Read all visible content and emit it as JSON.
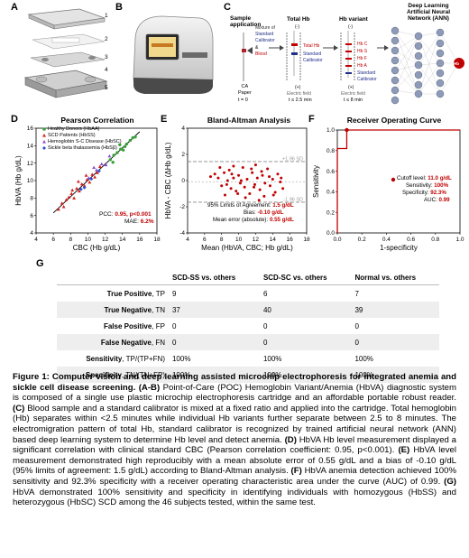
{
  "panels": {
    "a": "A",
    "b": "B",
    "c": "C",
    "d": "D",
    "e": "E",
    "f": "F",
    "g": "G"
  },
  "panel_a": {
    "parts": [
      "1",
      "2",
      "3",
      "4",
      "5"
    ]
  },
  "panel_c": {
    "sample_application": "Sample\napplication",
    "mixture": "Mixture of",
    "standard_calibrator": "Standard\nCalibrator",
    "amp": "&",
    "blood": "Blood",
    "ca_paper": "CA\nPaper",
    "t0": "t = 0",
    "total_hb_title": "Total Hb",
    "minus1": "(-)",
    "total_hb": "Total Hb",
    "standard_calibrator2": "Standard\nCalibrator",
    "plus1": "(+)",
    "electric_field1": "Electric field",
    "time1": "t ≤ 2.5 min",
    "variant_title": "Hb variant",
    "minus2": "(-)",
    "variants": [
      "Hb C",
      "Hb S",
      "Hb F",
      "Hb A",
      "Standard\nCalibrator"
    ],
    "plus2": "(+)",
    "electric_field2": "Electric field",
    "time2": "t ≤ 8 min",
    "ann_title": "Deep Learning\nArtificial Neural\nNetwork (ANN)",
    "hb_node": "Hb"
  },
  "chart_data": [
    {
      "type": "scatter",
      "title": "Pearson Correlation",
      "xlabel": "CBC (Hb g/dL)",
      "ylabel": "HbVA (Hb g/dL)",
      "xlim": [
        4,
        18
      ],
      "ylim": [
        4,
        16
      ],
      "xticks": [
        4,
        6,
        8,
        10,
        12,
        14,
        16,
        18
      ],
      "yticks": [
        4,
        6,
        8,
        10,
        12,
        14,
        16
      ],
      "legend": [
        "Healthy Donors (HbAA)",
        "SCD Patients (HbSS)",
        "Hemoglobin S-C Disease (HbSC)",
        "Sickle beta thalassemia (HbSβ)"
      ],
      "legend_colors": [
        "#3ca03c",
        "#d22020",
        "#8a4fd0",
        "#3050d0"
      ],
      "series": [
        {
          "name": "Healthy Donors (HbAA)",
          "points": [
            [
              12.6,
              12.4
            ],
            [
              13.0,
              12.9
            ],
            [
              13.4,
              13.2
            ],
            [
              13.8,
              13.6
            ],
            [
              14.1,
              13.5
            ],
            [
              14.5,
              14.2
            ],
            [
              14.9,
              14.6
            ],
            [
              15.2,
              14.9
            ],
            [
              13.7,
              14.1
            ],
            [
              12.9,
              12.1
            ],
            [
              15.5,
              15.0
            ],
            [
              14.3,
              13.9
            ]
          ]
        },
        {
          "name": "SCD Patients (HbSS)",
          "points": [
            [
              6.6,
              6.7
            ],
            [
              7.0,
              7.4
            ],
            [
              7.5,
              7.8
            ],
            [
              7.8,
              8.1
            ],
            [
              8.1,
              8.5
            ],
            [
              8.4,
              8.0
            ],
            [
              8.7,
              9.1
            ],
            [
              9.0,
              8.8
            ],
            [
              9.3,
              9.6
            ],
            [
              9.6,
              9.4
            ],
            [
              9.9,
              10.1
            ],
            [
              10.2,
              9.8
            ],
            [
              10.5,
              10.7
            ],
            [
              10.8,
              10.4
            ],
            [
              11.1,
              10.9
            ],
            [
              8.9,
              9.9
            ],
            [
              9.8,
              10.6
            ],
            [
              7.2,
              7.0
            ],
            [
              11.4,
              11.6
            ],
            [
              8.2,
              8.9
            ]
          ]
        },
        {
          "name": "Hemoglobin S-C Disease (HbSC)",
          "points": [
            [
              10.1,
              10.3
            ],
            [
              11.0,
              11.2
            ],
            [
              11.6,
              11.9
            ],
            [
              12.1,
              11.8
            ],
            [
              12.5,
              12.8
            ],
            [
              10.7,
              11.5
            ]
          ]
        },
        {
          "name": "Sickle beta thalassemia (HbSβ)",
          "points": [
            [
              9.2,
              9.0
            ],
            [
              10.4,
              10.2
            ],
            [
              11.3,
              11.1
            ],
            [
              9.6,
              9.2
            ]
          ]
        }
      ],
      "fit_line": [
        [
          6,
          6.3
        ],
        [
          16,
          15.6
        ]
      ],
      "stats": {
        "pcc_label": "PCC: ",
        "pcc": "0.95, p<0.001",
        "mae_label": "MAE: ",
        "mae": "6.2%"
      }
    },
    {
      "type": "scatter",
      "title": "Bland-Altman Analysis",
      "xlabel": "Mean (HbVA, CBC; Hb g/dL)",
      "ylabel": "HbVA - CBC (ΔHb g/dL)",
      "xlim": [
        4,
        18
      ],
      "ylim": [
        -4,
        4
      ],
      "xticks": [
        4,
        6,
        8,
        10,
        12,
        14,
        16,
        18
      ],
      "yticks": [
        -4,
        -2,
        0,
        2,
        4
      ],
      "limits": {
        "upper": 1.45,
        "lower": -1.65,
        "bias": -0.1
      },
      "upper_label": "+1.96 SD",
      "lower_label": "-1.96 SD",
      "points": [
        [
          6.7,
          0.3
        ],
        [
          7.2,
          0.5
        ],
        [
          7.6,
          0.2
        ],
        [
          8.0,
          -0.4
        ],
        [
          8.3,
          0.6
        ],
        [
          8.6,
          -0.3
        ],
        [
          8.9,
          0.8
        ],
        [
          9.1,
          -0.6
        ],
        [
          9.4,
          0.2
        ],
        [
          9.7,
          -0.8
        ],
        [
          10.0,
          0.4
        ],
        [
          10.2,
          -0.2
        ],
        [
          10.5,
          1.0
        ],
        [
          10.7,
          -0.5
        ],
        [
          11.0,
          0.1
        ],
        [
          11.3,
          -1.0
        ],
        [
          11.6,
          0.6
        ],
        [
          11.9,
          -0.3
        ],
        [
          12.2,
          0.2
        ],
        [
          12.5,
          -0.7
        ],
        [
          12.8,
          0.4
        ],
        [
          13.1,
          -0.2
        ],
        [
          13.4,
          0.9
        ],
        [
          13.7,
          -0.4
        ],
        [
          14.0,
          0.1
        ],
        [
          14.3,
          -0.9
        ],
        [
          14.6,
          0.5
        ],
        [
          14.9,
          -0.1
        ],
        [
          15.2,
          -0.6
        ],
        [
          9.4,
          1.1
        ],
        [
          10.8,
          -1.3
        ],
        [
          12.0,
          1.2
        ],
        [
          8.4,
          -1.1
        ],
        [
          13.0,
          -1.2
        ],
        [
          7.8,
          1.0
        ],
        [
          11.5,
          0.9
        ],
        [
          9.9,
          -1.0
        ],
        [
          12.7,
          0.7
        ],
        [
          14.1,
          -1.1
        ],
        [
          10.3,
          0.0
        ],
        [
          11.8,
          -0.5
        ],
        [
          13.6,
          0.3
        ],
        [
          15.0,
          0.2
        ],
        [
          8.7,
          0.0
        ],
        [
          12.4,
          -1.5
        ],
        [
          9.2,
          0.5
        ]
      ],
      "stats": {
        "loa_label": "95% Limits of Agreement: ",
        "loa": "1.5 g/dL",
        "bias_label": "Bias: ",
        "bias": "-0.10 g/dL",
        "mae_label": "Mean error (absolute): ",
        "mae": "0.55 g/dL"
      }
    },
    {
      "type": "line",
      "title": "Receiver Operating Curve",
      "xlabel": "1-specificity",
      "ylabel": "Sensitivity",
      "xlim": [
        0,
        1
      ],
      "ylim": [
        0,
        1
      ],
      "xticks": [
        "0.0",
        "0.2",
        "0.4",
        "0.6",
        "0.8",
        "1.0"
      ],
      "yticks": [
        "0.0",
        "0.2",
        "0.4",
        "0.6",
        "0.8",
        "1.0"
      ],
      "roc": [
        [
          0,
          0
        ],
        [
          0,
          0.82
        ],
        [
          0.077,
          0.82
        ],
        [
          0.077,
          1.0
        ],
        [
          1.0,
          1.0
        ]
      ],
      "cutoff_point": [
        0.077,
        1.0
      ],
      "stats": {
        "cutoff_label": "Cutoff level: ",
        "cutoff": "11.0 g/dL",
        "sens_label": "Sensitivity: ",
        "sens": "100%",
        "spec_label": "Specificity: ",
        "spec": "92.3%",
        "auc_label": "AUC: ",
        "auc": "0.99"
      }
    }
  ],
  "table": {
    "headers": [
      "",
      "SCD-SS vs. others",
      "SCD-SC vs. others",
      "Normal vs. others"
    ],
    "rows": [
      {
        "label": "True Positive",
        "abbr": ", TP",
        "values": [
          "9",
          "6",
          "7"
        ]
      },
      {
        "label": "True Negative",
        "abbr": ", TN",
        "values": [
          "37",
          "40",
          "39"
        ]
      },
      {
        "label": "False Positive",
        "abbr": ", FP",
        "values": [
          "0",
          "0",
          "0"
        ]
      },
      {
        "label": "False Negative",
        "abbr": ", FN",
        "values": [
          "0",
          "0",
          "0"
        ]
      },
      {
        "label": "Sensitivity",
        "abbr": ", TP/(TP+FN)",
        "values": [
          "100%",
          "100%",
          "100%"
        ]
      },
      {
        "label": "Specificity",
        "abbr": ", TN/(TN+FP)",
        "values": [
          "100%",
          "100%",
          "100%"
        ]
      }
    ]
  },
  "caption": {
    "title": "Figure 1: Computer vision and deep learning assisted microchip electrophoresis for integrated anemia and sickle cell disease screening. ",
    "ab_tag": "(A-B)",
    "ab_text": " Point-of-Care (POC) Hemoglobin Variant/Anemia (HbVA) diagnostic system is composed of a single use plastic microchip electrophoresis cartridge and an affordable portable robust reader. ",
    "c_tag": "(C)",
    "c_text": " Blood sample and a standard calibrator is mixed at a fixed ratio and applied into the cartridge. Total hemoglobin (Hb) separates within <2.5 minutes while individual Hb variants further separate between 2.5 to 8 minutes. The electromigration pattern of total Hb, standard calibrator is recognized by trained artificial neural network (ANN) based deep learning system to determine Hb level and detect anemia. ",
    "d_tag": "(D)",
    "d_text": " HbVA Hb level measurement displayed a significant correlation with clinical standard CBC (Pearson correlation coefficient: 0.95, p<0.001). ",
    "e_tag": "(E)",
    "e_text": " HbVA level measurement demonstrated high reproducibly with a mean absolute error of 0.55 g/dL and a bias of -0.10 g/dL (95% limits of agreement: 1.5 g/dL) according to Bland-Altman analysis. ",
    "f_tag": "(F)",
    "f_text": " HbVA anemia detection achieved 100% sensitivity and 92.3% specificity with a receiver operating characteristic area under the curve (AUC) of 0.99. ",
    "g_tag": "(G)",
    "g_text": " HbVA demonstrated 100% sensitivity and specificity in identifying individuals with homozygous (HbSS) and heterozygous (HbSC) SCD among the 46 subjects tested, within the same test."
  },
  "colors": {
    "red": "#c00000",
    "navy": "#1f2f8a",
    "gray": "#888888"
  }
}
